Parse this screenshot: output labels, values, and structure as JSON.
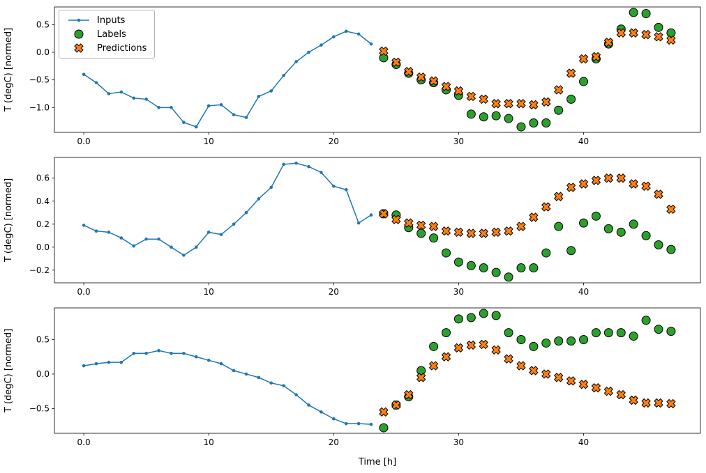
{
  "figure": {
    "xlabel": "Time [h]",
    "ylabel": "T (degC) [normed]",
    "legend": [
      "Inputs",
      "Labels",
      "Predictions"
    ],
    "colors": {
      "inputs": "#1f77b4",
      "labels": "#2ca02c",
      "predictions": "#ff7f0e",
      "edge": "#000000",
      "background": "#ffffff"
    }
  },
  "chart_data": [
    {
      "type": "line+scatter",
      "ylabel": "T (degC) [normed]",
      "xlabel": "",
      "xlim": [
        -2.35,
        49.35
      ],
      "ylim": [
        -1.45,
        0.82
      ],
      "xticks": [
        0,
        10,
        20,
        30,
        40
      ],
      "yticks": [
        0.5,
        0.0,
        -0.5,
        -1.0
      ],
      "legend_visible": true,
      "series": [
        {
          "name": "Inputs",
          "marker": "dot-line",
          "x": [
            0,
            1,
            2,
            3,
            4,
            5,
            6,
            7,
            8,
            9,
            10,
            11,
            12,
            13,
            14,
            15,
            16,
            17,
            18,
            19,
            20,
            21,
            22,
            23
          ],
          "y": [
            -0.4,
            -0.55,
            -0.75,
            -0.72,
            -0.83,
            -0.85,
            -1.0,
            -1.0,
            -1.27,
            -1.35,
            -0.97,
            -0.95,
            -1.13,
            -1.18,
            -0.8,
            -0.7,
            -0.42,
            -0.17,
            0.0,
            0.13,
            0.28,
            0.38,
            0.33,
            0.15
          ]
        },
        {
          "name": "Labels",
          "marker": "circle",
          "x": [
            24,
            25,
            26,
            27,
            28,
            29,
            30,
            31,
            32,
            33,
            34,
            35,
            36,
            37,
            38,
            39,
            40,
            41,
            42,
            43,
            44,
            45,
            46,
            47
          ],
          "y": [
            -0.1,
            -0.22,
            -0.38,
            -0.5,
            -0.55,
            -0.68,
            -0.78,
            -1.12,
            -1.17,
            -1.15,
            -1.2,
            -1.35,
            -1.28,
            -1.28,
            -1.05,
            -0.85,
            -0.53,
            -0.12,
            0.15,
            0.42,
            0.72,
            0.7,
            0.45,
            0.35
          ]
        },
        {
          "name": "Predictions",
          "marker": "X",
          "x": [
            24,
            25,
            26,
            27,
            28,
            29,
            30,
            31,
            32,
            33,
            34,
            35,
            36,
            37,
            38,
            39,
            40,
            41,
            42,
            43,
            44,
            45,
            46,
            47
          ],
          "y": [
            0.02,
            -0.18,
            -0.35,
            -0.45,
            -0.52,
            -0.62,
            -0.7,
            -0.8,
            -0.85,
            -0.93,
            -0.93,
            -0.93,
            -0.95,
            -0.9,
            -0.68,
            -0.38,
            -0.12,
            -0.08,
            0.18,
            0.35,
            0.35,
            0.32,
            0.28,
            0.22
          ]
        }
      ]
    },
    {
      "type": "line+scatter",
      "ylabel": "T (degC) [normed]",
      "xlabel": "",
      "xlim": [
        -2.35,
        49.35
      ],
      "ylim": [
        -0.31,
        0.78
      ],
      "xticks": [
        0,
        10,
        20,
        30,
        40
      ],
      "yticks": [
        0.6,
        0.4,
        0.2,
        0.0,
        -0.2
      ],
      "legend_visible": false,
      "series": [
        {
          "name": "Inputs",
          "marker": "dot-line",
          "x": [
            0,
            1,
            2,
            3,
            4,
            5,
            6,
            7,
            8,
            9,
            10,
            11,
            12,
            13,
            14,
            15,
            16,
            17,
            18,
            19,
            20,
            21,
            22,
            23
          ],
          "y": [
            0.19,
            0.14,
            0.13,
            0.08,
            0.01,
            0.07,
            0.07,
            0.0,
            -0.07,
            0.0,
            0.13,
            0.11,
            0.2,
            0.3,
            0.42,
            0.52,
            0.72,
            0.73,
            0.7,
            0.65,
            0.53,
            0.5,
            0.21,
            0.28
          ]
        },
        {
          "name": "Labels",
          "marker": "circle",
          "x": [
            24,
            25,
            26,
            27,
            28,
            29,
            30,
            31,
            32,
            33,
            34,
            35,
            36,
            37,
            38,
            39,
            40,
            41,
            42,
            43,
            44,
            45,
            46,
            47
          ],
          "y": [
            0.29,
            0.28,
            0.17,
            0.12,
            0.08,
            -0.05,
            -0.13,
            -0.16,
            -0.18,
            -0.22,
            -0.26,
            -0.18,
            -0.18,
            -0.05,
            0.18,
            -0.03,
            0.21,
            0.27,
            0.16,
            0.13,
            0.2,
            0.1,
            0.02,
            -0.02
          ]
        },
        {
          "name": "Predictions",
          "marker": "X",
          "x": [
            24,
            25,
            26,
            27,
            28,
            29,
            30,
            31,
            32,
            33,
            34,
            35,
            36,
            37,
            38,
            39,
            40,
            41,
            42,
            43,
            44,
            45,
            46,
            47
          ],
          "y": [
            0.29,
            0.24,
            0.21,
            0.19,
            0.18,
            0.14,
            0.13,
            0.12,
            0.12,
            0.13,
            0.14,
            0.18,
            0.26,
            0.35,
            0.44,
            0.52,
            0.55,
            0.58,
            0.6,
            0.6,
            0.55,
            0.53,
            0.46,
            0.33
          ]
        }
      ]
    },
    {
      "type": "line+scatter",
      "ylabel": "T (degC) [normed]",
      "xlabel": "Time [h]",
      "xlim": [
        -2.35,
        49.35
      ],
      "ylim": [
        -0.86,
        0.96
      ],
      "xticks": [
        0,
        10,
        20,
        30,
        40
      ],
      "yticks": [
        0.5,
        0.0,
        -0.5
      ],
      "legend_visible": false,
      "series": [
        {
          "name": "Inputs",
          "marker": "dot-line",
          "x": [
            0,
            1,
            2,
            3,
            4,
            5,
            6,
            7,
            8,
            9,
            10,
            11,
            12,
            13,
            14,
            15,
            16,
            17,
            18,
            19,
            20,
            21,
            22,
            23
          ],
          "y": [
            0.12,
            0.15,
            0.17,
            0.17,
            0.3,
            0.3,
            0.34,
            0.3,
            0.3,
            0.25,
            0.2,
            0.15,
            0.05,
            0.0,
            -0.05,
            -0.13,
            -0.17,
            -0.3,
            -0.45,
            -0.55,
            -0.65,
            -0.72,
            -0.72,
            -0.73
          ]
        },
        {
          "name": "Labels",
          "marker": "circle",
          "x": [
            24,
            25,
            26,
            27,
            28,
            29,
            30,
            31,
            32,
            33,
            34,
            35,
            36,
            37,
            38,
            39,
            40,
            41,
            42,
            43,
            44,
            45,
            46,
            47
          ],
          "y": [
            -0.78,
            -0.45,
            -0.33,
            0.05,
            0.4,
            0.6,
            0.8,
            0.82,
            0.88,
            0.85,
            0.6,
            0.5,
            0.4,
            0.45,
            0.48,
            0.48,
            0.5,
            0.6,
            0.6,
            0.6,
            0.55,
            0.78,
            0.65,
            0.62
          ]
        },
        {
          "name": "Predictions",
          "marker": "X",
          "x": [
            24,
            25,
            26,
            27,
            28,
            29,
            30,
            31,
            32,
            33,
            34,
            35,
            36,
            37,
            38,
            39,
            40,
            41,
            42,
            43,
            44,
            45,
            46,
            47
          ],
          "y": [
            -0.55,
            -0.45,
            -0.3,
            -0.05,
            0.12,
            0.25,
            0.38,
            0.42,
            0.43,
            0.35,
            0.22,
            0.12,
            0.05,
            0.0,
            -0.05,
            -0.1,
            -0.15,
            -0.2,
            -0.25,
            -0.3,
            -0.38,
            -0.42,
            -0.42,
            -0.43
          ]
        }
      ]
    }
  ]
}
